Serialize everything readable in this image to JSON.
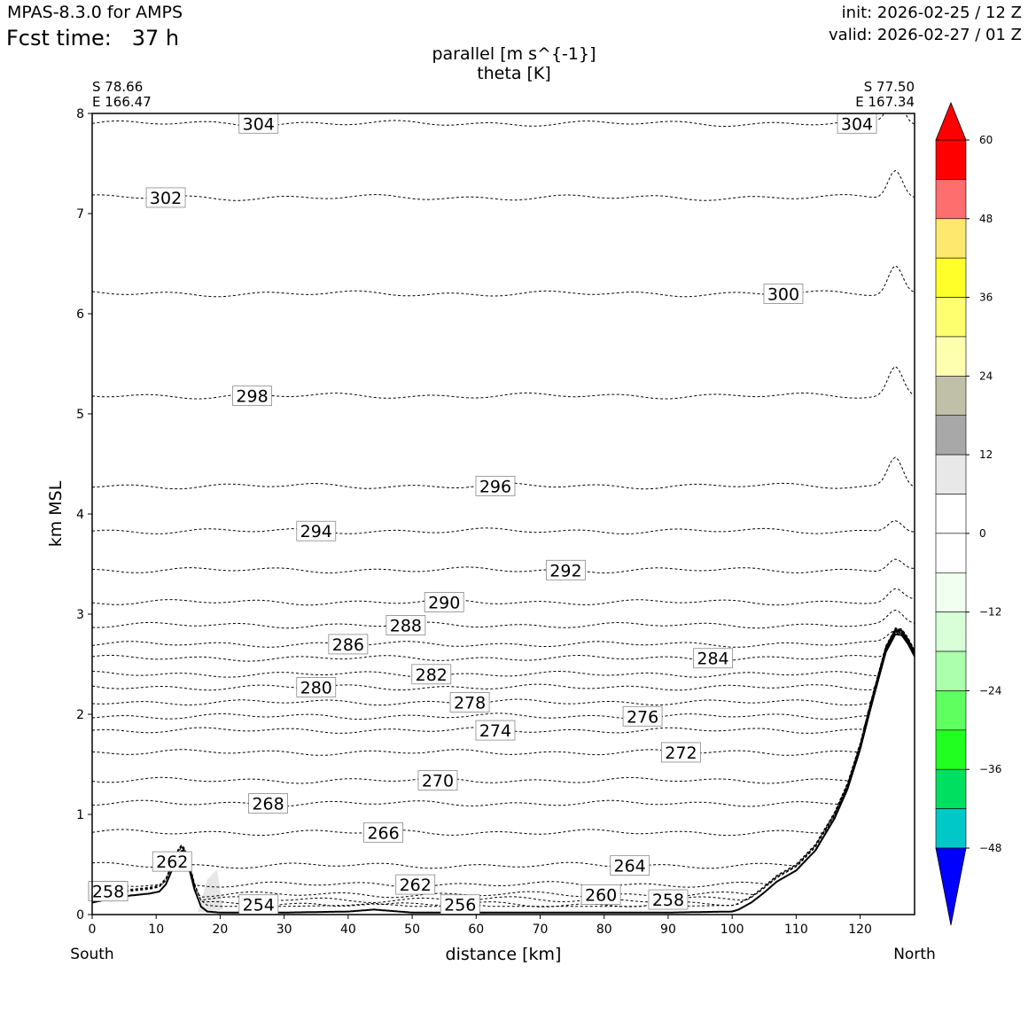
{
  "header": {
    "model": "MPAS-8.3.0 for AMPS",
    "fcst_label": "Fcst time:",
    "fcst_value": "37 h",
    "init": "init: 2026-02-25 / 12 Z",
    "valid": "valid: 2026-02-27 / 01 Z"
  },
  "chart_data": {
    "type": "cross-section",
    "title_line1": "parallel [m s^{-1}]",
    "title_line2": "theta [K]",
    "xlabel": "distance [km]",
    "ylabel": "km MSL",
    "xlim": [
      0,
      128.5
    ],
    "ylim": [
      0,
      8
    ],
    "x_ticks": [
      0,
      10,
      20,
      30,
      40,
      50,
      60,
      70,
      80,
      90,
      100,
      110,
      120
    ],
    "y_ticks": [
      0,
      1,
      2,
      3,
      4,
      5,
      6,
      7,
      8
    ],
    "left_end": {
      "lat": "S 78.66",
      "lon": "E 166.47",
      "side": "South"
    },
    "right_end": {
      "lat": "S 77.50",
      "lon": "E 167.34",
      "side": "North"
    },
    "terrain": {
      "x": [
        0,
        3,
        6,
        9,
        10.5,
        11.5,
        12.5,
        13.5,
        14.2,
        15,
        16,
        17,
        18,
        20,
        25,
        30,
        40,
        44,
        46,
        50,
        60,
        70,
        80,
        90,
        100,
        101,
        103,
        105,
        107,
        110,
        113,
        116,
        118,
        120,
        122,
        124,
        125.5,
        126.5,
        127.5,
        128.5
      ],
      "y": [
        0.12,
        0.16,
        0.19,
        0.21,
        0.23,
        0.3,
        0.45,
        0.6,
        0.65,
        0.5,
        0.25,
        0.08,
        0.03,
        0.02,
        0.02,
        0.02,
        0.03,
        0.05,
        0.04,
        0.02,
        0.02,
        0.02,
        0.02,
        0.02,
        0.03,
        0.05,
        0.12,
        0.22,
        0.33,
        0.44,
        0.64,
        0.96,
        1.25,
        1.65,
        2.15,
        2.62,
        2.8,
        2.79,
        2.7,
        2.58
      ]
    },
    "theta_contours": [
      {
        "value": 304,
        "base": 7.9,
        "label_x": 26,
        "label2_x": 119.5
      },
      {
        "value": 302,
        "base": 7.16,
        "label_x": 11.5
      },
      {
        "value": 300,
        "base": 6.2,
        "label_x": 108
      },
      {
        "value": 298,
        "base": 5.18,
        "label_x": 25
      },
      {
        "value": 296,
        "base": 4.28,
        "label_x": 63
      },
      {
        "value": 294,
        "base": 3.83,
        "label_x": 35
      },
      {
        "value": 292,
        "base": 3.44,
        "label_x": 74
      },
      {
        "value": 290,
        "base": 3.12,
        "label_x": 55
      },
      {
        "value": 288,
        "base": 2.89,
        "label_x": 49
      },
      {
        "value": 286,
        "base": 2.7,
        "label_x": 40
      },
      {
        "value": 284,
        "base": 2.56,
        "label_x": 97
      },
      {
        "value": 282,
        "base": 2.4,
        "label_x": 53
      },
      {
        "value": 280,
        "base": 2.27,
        "label_x": 35
      },
      {
        "value": 278,
        "base": 2.12,
        "label_x": 59
      },
      {
        "value": 276,
        "base": 1.98,
        "label_x": 86
      },
      {
        "value": 274,
        "base": 1.84,
        "label_x": 63
      },
      {
        "value": 272,
        "base": 1.62,
        "label_x": 92
      },
      {
        "value": 270,
        "base": 1.34,
        "label_x": 54
      },
      {
        "value": 268,
        "base": 1.11,
        "label_x": 27.5
      },
      {
        "value": 266,
        "base": 0.82,
        "label_x": 45.5
      },
      {
        "value": 264,
        "base": 0.49,
        "label_x": 84
      },
      {
        "value": 262,
        "base": 0.3,
        "label_x": 12.5,
        "label2_x": 50.5
      },
      {
        "value": 260,
        "base": 0.2,
        "label_x": 2.5,
        "label2_x": 79.5
      },
      {
        "value": 258,
        "base": 0.15,
        "label_x": 2.5,
        "label2_x": 90
      },
      {
        "value": 256,
        "base": 0.1,
        "label_x": 57.5
      },
      {
        "value": 254,
        "base": 0.07,
        "label_x": 26
      }
    ],
    "colorbar": {
      "ticks": [
        60,
        48,
        36,
        24,
        12,
        0,
        -12,
        -24,
        -36,
        -48
      ],
      "boundaries": [
        54,
        48,
        42,
        36,
        30,
        24,
        18,
        12,
        6,
        0,
        -6,
        -12,
        -18,
        -24,
        -30,
        -36,
        -42,
        -48,
        -54
      ],
      "colors": [
        "#ff0000",
        "#ff6e6e",
        "#ffe86e",
        "#ffff29",
        "#ffff70",
        "#ffffb0",
        "#c0c0a8",
        "#a8a8a8",
        "#e8e8e8",
        "#ffffff",
        "#ffffff",
        "#f0fff0",
        "#d8ffd8",
        "#acffac",
        "#60ff60",
        "#20ff20",
        "#00e060",
        "#00c8c8",
        "#0000ff"
      ],
      "extend_max_color": "#ff0000",
      "extend_min_color": "#0000ff"
    }
  }
}
